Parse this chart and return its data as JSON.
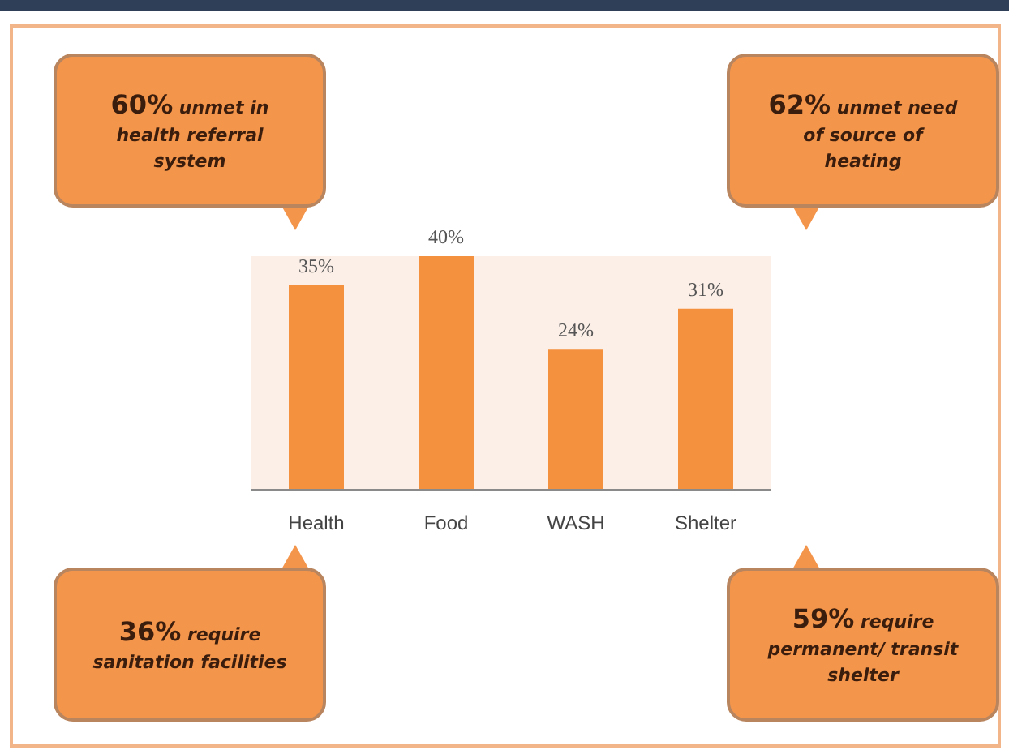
{
  "chart_data": {
    "type": "bar",
    "categories": [
      "Health",
      "Food",
      "WASH",
      "Shelter"
    ],
    "values": [
      35,
      40,
      24,
      31
    ],
    "value_labels": [
      "35%",
      "40%",
      "24%",
      "31%"
    ],
    "tick_labels": "x",
    "color": "#f4913f",
    "annotations": [
      "60% unmet in health referral system",
      "62% unmet need of source of heating",
      "36% require sanitation facilities",
      "59% require permanent/ transit shelter"
    ]
  }
}
